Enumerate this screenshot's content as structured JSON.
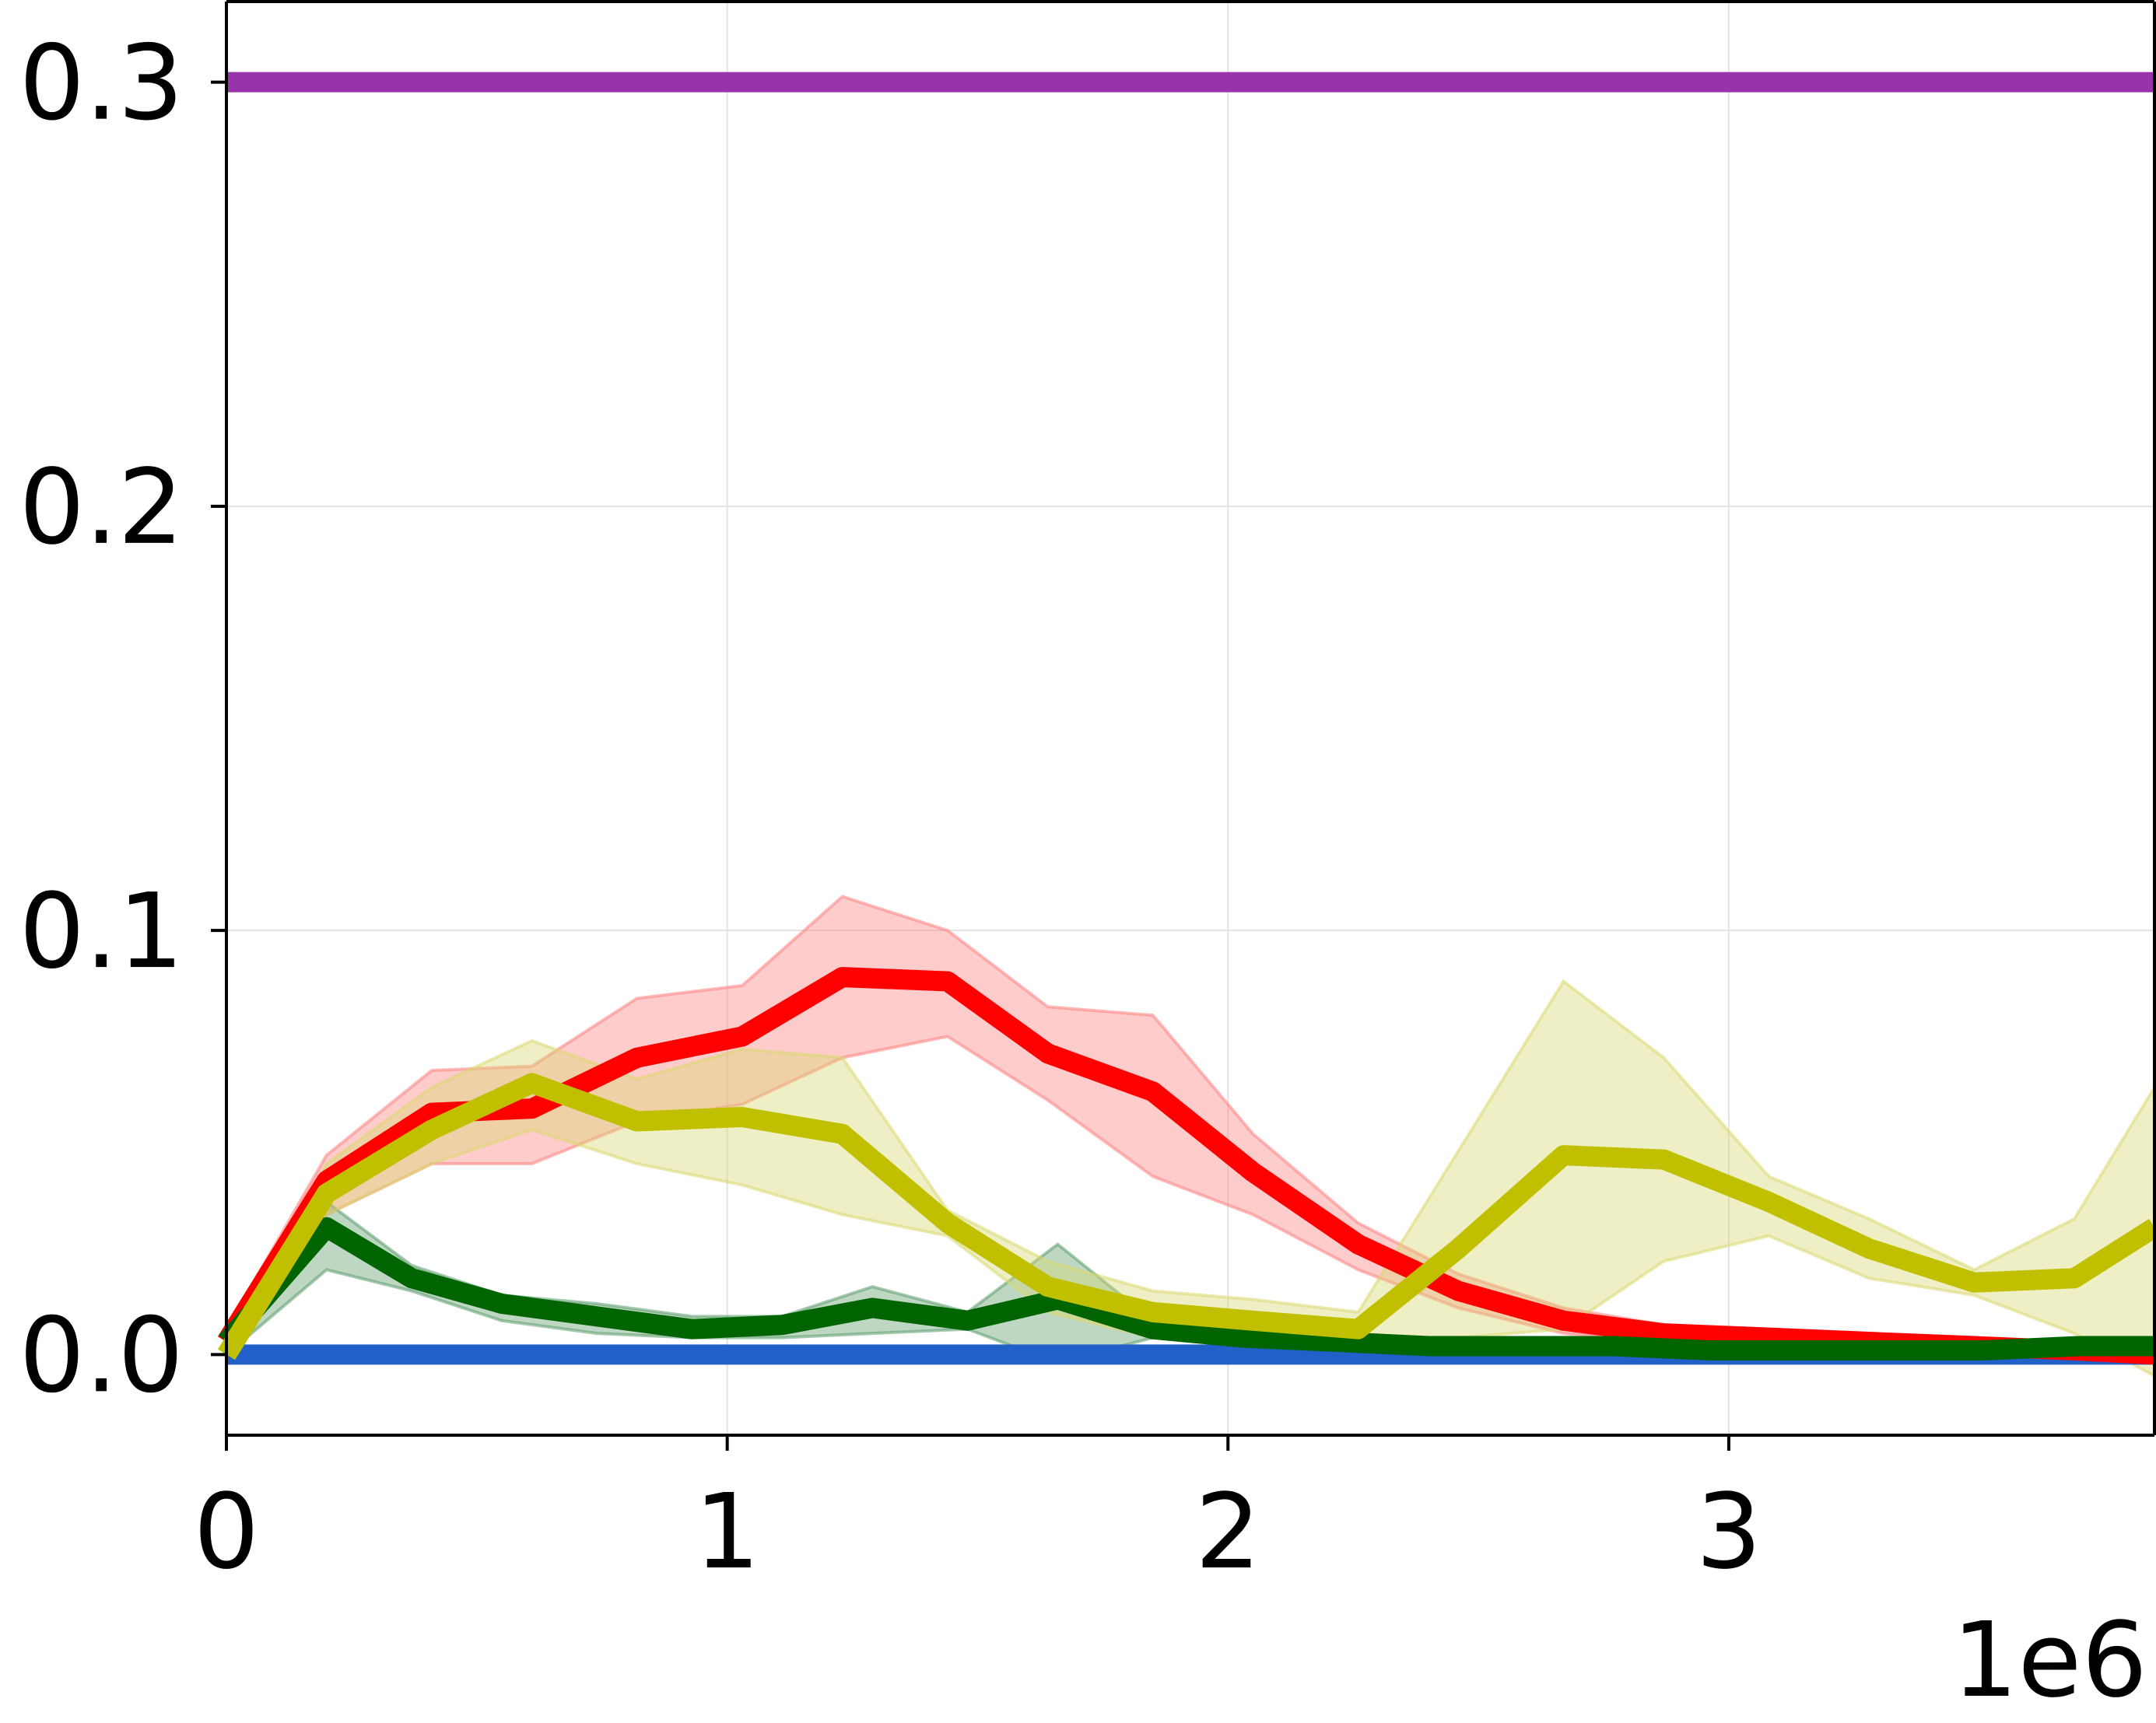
{
  "chart_data": {
    "type": "line",
    "title": "",
    "xlabel": "",
    "ylabel": "",
    "x_offset_label": "1e6",
    "xlim": [
      0,
      3.85
    ],
    "ylim": [
      -0.019,
      0.319
    ],
    "xticks": [
      0,
      1,
      2,
      3
    ],
    "xtick_labels": [
      "0",
      "1",
      "2",
      "3"
    ],
    "yticks": [
      0.0,
      0.1,
      0.2,
      0.3
    ],
    "ytick_labels": [
      "0.0",
      "0.1",
      "0.2",
      "0.3"
    ],
    "grid": true,
    "legend": "none",
    "series": [
      {
        "color": "#9933aa",
        "band_color": null,
        "x": [
          0,
          3.85
        ],
        "y": [
          0.3,
          0.3
        ],
        "lower": null,
        "upper": null
      },
      {
        "color": "#2060c8",
        "band_color": null,
        "x": [
          0,
          3.85
        ],
        "y": [
          0.0,
          0.0
        ],
        "lower": null,
        "upper": null
      },
      {
        "color": "#ff0000",
        "band_color": "#ff8080",
        "x": [
          0,
          0.2,
          0.41,
          0.61,
          0.82,
          1.03,
          1.23,
          1.44,
          1.64,
          1.85,
          2.05,
          2.26,
          2.46,
          2.67,
          2.87,
          3.08,
          3.28,
          3.49,
          3.69,
          3.85
        ],
        "y": [
          0.003,
          0.041,
          0.057,
          0.058,
          0.07,
          0.075,
          0.089,
          0.088,
          0.071,
          0.062,
          0.043,
          0.026,
          0.015,
          0.008,
          0.005,
          0.004,
          0.003,
          0.002,
          0.001,
          0.0
        ],
        "lower": [
          0.0,
          0.033,
          0.045,
          0.045,
          0.055,
          0.059,
          0.07,
          0.075,
          0.06,
          0.042,
          0.033,
          0.02,
          0.011,
          0.005,
          0.003,
          0.002,
          0.001,
          0.0,
          0.0,
          -0.001
        ],
        "upper": [
          0.006,
          0.047,
          0.067,
          0.068,
          0.084,
          0.087,
          0.108,
          0.1,
          0.082,
          0.08,
          0.052,
          0.031,
          0.019,
          0.011,
          0.007,
          0.006,
          0.004,
          0.003,
          0.002,
          0.001
        ]
      },
      {
        "color": "#006400",
        "band_color": "#5a9a6a",
        "x": [
          0,
          0.2,
          0.37,
          0.55,
          0.74,
          0.93,
          1.11,
          1.29,
          1.48,
          1.66,
          1.85,
          2.03,
          2.22,
          2.4,
          2.59,
          2.77,
          2.96,
          3.14,
          3.33,
          3.51,
          3.7,
          3.85
        ],
        "y": [
          0.003,
          0.03,
          0.018,
          0.012,
          0.009,
          0.006,
          0.007,
          0.011,
          0.008,
          0.013,
          0.006,
          0.004,
          0.003,
          0.002,
          0.002,
          0.002,
          0.001,
          0.001,
          0.001,
          0.001,
          0.002,
          0.002
        ],
        "lower": [
          0.0,
          0.02,
          0.015,
          0.008,
          0.005,
          0.004,
          0.004,
          0.005,
          0.006,
          -0.002,
          0.004,
          0.002,
          0.001,
          0.0,
          0.0,
          0.0,
          0.0,
          0.0,
          0.0,
          0.0,
          0.001,
          0.001
        ],
        "upper": [
          0.006,
          0.036,
          0.021,
          0.014,
          0.012,
          0.009,
          0.009,
          0.016,
          0.01,
          0.026,
          0.008,
          0.006,
          0.004,
          0.003,
          0.003,
          0.003,
          0.002,
          0.002,
          0.002,
          0.002,
          0.003,
          0.003
        ]
      },
      {
        "color": "#c0c000",
        "band_color": "#d8d870",
        "x": [
          0,
          0.2,
          0.41,
          0.61,
          0.82,
          1.03,
          1.23,
          1.44,
          1.64,
          1.85,
          2.05,
          2.26,
          2.46,
          2.67,
          2.87,
          3.08,
          3.28,
          3.49,
          3.69,
          3.85
        ],
        "y": [
          0.0,
          0.038,
          0.053,
          0.064,
          0.055,
          0.056,
          0.052,
          0.031,
          0.016,
          0.01,
          0.008,
          0.006,
          0.025,
          0.047,
          0.046,
          0.036,
          0.025,
          0.017,
          0.018,
          0.03
        ],
        "lower": [
          -0.002,
          0.033,
          0.045,
          0.053,
          0.045,
          0.04,
          0.033,
          0.028,
          0.01,
          0.004,
          0.002,
          0.002,
          0.004,
          0.006,
          0.022,
          0.028,
          0.018,
          0.014,
          0.005,
          -0.005
        ],
        "upper": [
          0.002,
          0.045,
          0.063,
          0.074,
          0.065,
          0.072,
          0.07,
          0.034,
          0.022,
          0.015,
          0.013,
          0.01,
          0.048,
          0.088,
          0.07,
          0.042,
          0.032,
          0.02,
          0.032,
          0.063
        ]
      }
    ]
  }
}
